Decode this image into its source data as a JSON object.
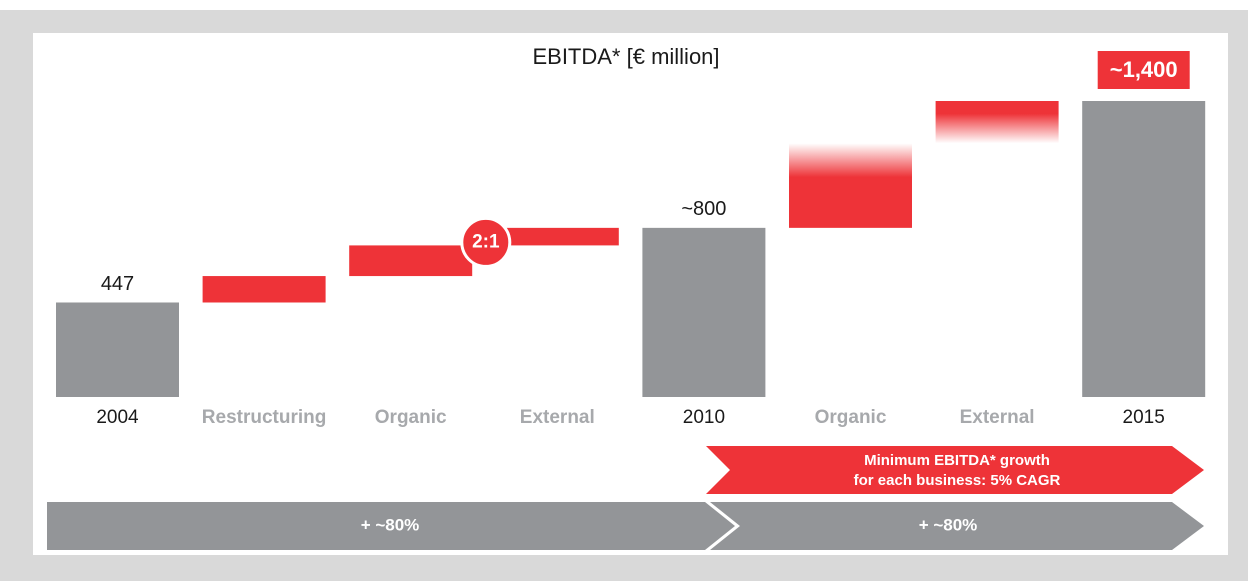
{
  "chart_data": {
    "type": "waterfall",
    "title": "EBITDA* [€ million]",
    "categories": [
      "2004",
      "Restructuring",
      "Organic",
      "External",
      "2010",
      "Organic",
      "External",
      "2015"
    ],
    "measure": [
      "absolute",
      "relative",
      "relative",
      "relative",
      "absolute",
      "relative",
      "relative",
      "absolute"
    ],
    "values": [
      447,
      125,
      145,
      83,
      800,
      400,
      200,
      1400
    ],
    "value_labels": [
      "447",
      null,
      null,
      null,
      "~800",
      null,
      null,
      "~1,400"
    ],
    "colors": {
      "absolute": "#939598",
      "relative": "#ee3338"
    },
    "badge": "2:1",
    "growth_note": [
      "Minimum EBITDA* growth",
      "for each business: 5% CAGR"
    ],
    "period_growth": [
      "+ ~80%",
      "+ ~80%"
    ]
  }
}
